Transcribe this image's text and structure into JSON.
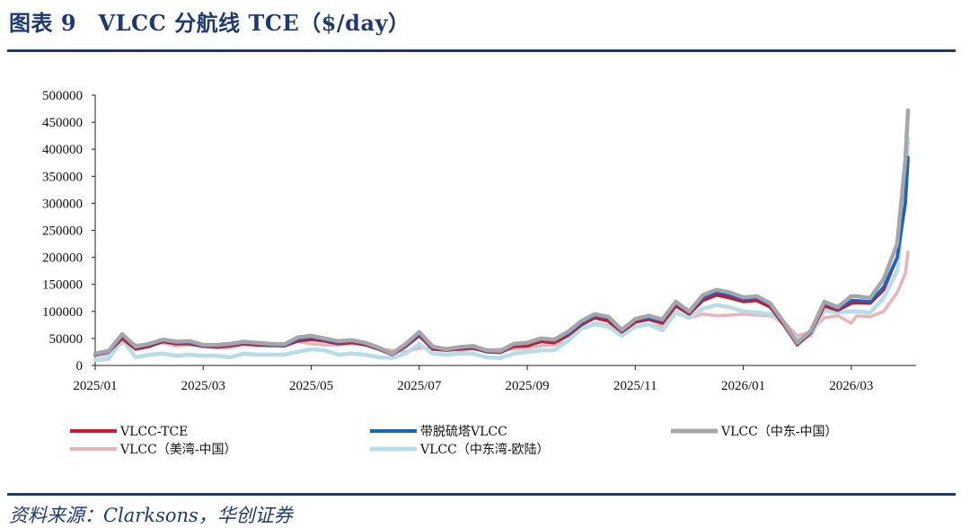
{
  "header": {
    "title": "图表 9　VLCC 分航线 TCE（$/day）"
  },
  "footer": {
    "source": "资料来源：Clarksons，华创证券"
  },
  "chart_data": {
    "type": "line",
    "title": "VLCC 分航线 TCE（$/day）",
    "xlabel": "",
    "ylabel": "",
    "ylim": [
      0,
      500000
    ],
    "y_ticks": [
      0,
      50000,
      100000,
      150000,
      200000,
      250000,
      300000,
      350000,
      400000,
      450000,
      500000
    ],
    "x_ticks": [
      "2025/01",
      "2025/03",
      "2025/05",
      "2025/07",
      "2025/09",
      "2025/11",
      "2026/01",
      "2026/03"
    ],
    "x_tick_months": [
      0,
      2,
      4,
      6,
      8,
      10,
      12,
      14
    ],
    "x_range_months": [
      0,
      14.2
    ],
    "legend_placement": "bottom",
    "x": [
      0,
      0.25,
      0.5,
      0.75,
      1,
      1.25,
      1.5,
      1.75,
      2,
      2.25,
      2.5,
      2.75,
      3,
      3.25,
      3.5,
      3.75,
      4,
      4.25,
      4.5,
      4.75,
      5,
      5.25,
      5.5,
      5.75,
      6,
      6.25,
      6.5,
      6.75,
      7,
      7.25,
      7.5,
      7.75,
      8,
      8.25,
      8.5,
      8.75,
      9,
      9.25,
      9.5,
      9.75,
      10,
      10.25,
      10.5,
      10.75,
      11,
      11.25,
      11.5,
      11.75,
      12,
      12.25,
      12.5,
      12.75,
      13,
      13.25,
      13.5,
      13.75,
      14,
      14.1
    ],
    "series": [
      {
        "name": "VLCC-TCE",
        "color": "#d2152b",
        "width": 3.5,
        "values": [
          20000,
          25000,
          50000,
          30000,
          35000,
          44000,
          40000,
          40000,
          35000,
          34000,
          36000,
          40000,
          38000,
          37000,
          36000,
          45000,
          48000,
          45000,
          40000,
          42000,
          38000,
          30000,
          20000,
          35000,
          55000,
          30000,
          28000,
          30000,
          32000,
          25000,
          24000,
          35000,
          36000,
          44000,
          42000,
          55000,
          75000,
          88000,
          82000,
          62000,
          80000,
          85000,
          78000,
          110000,
          95000,
          120000,
          130000,
          125000,
          118000,
          120000,
          108000,
          75000,
          38000,
          60000,
          110000,
          102000,
          115000,
          116000
        ]
      },
      {
        "name": "带脱硫塔VLCC",
        "color": "#1565c0",
        "width": 3.5,
        "values": [
          20000,
          25000,
          55000,
          33000,
          38000,
          46000,
          42000,
          42000,
          36000,
          36000,
          38000,
          42000,
          40000,
          38000,
          37000,
          48000,
          52000,
          47000,
          42000,
          45000,
          40000,
          31000,
          21000,
          37000,
          58000,
          33000,
          29000,
          32000,
          34000,
          26000,
          25000,
          38000,
          40000,
          48000,
          46000,
          58000,
          78000,
          92000,
          87000,
          64000,
          84000,
          88000,
          82000,
          115000,
          98000,
          125000,
          135000,
          130000,
          122000,
          125000,
          112000,
          78000,
          40000,
          62000,
          115000,
          105000,
          120000,
          120000
        ]
      },
      {
        "name": "VLCC（中东-中国）",
        "color": "#a6a6a6",
        "width": 4.5,
        "values": [
          22000,
          27000,
          58000,
          35000,
          40000,
          48000,
          44000,
          45000,
          38000,
          38000,
          40000,
          44000,
          42000,
          40000,
          39000,
          52000,
          55000,
          50000,
          45000,
          47000,
          42000,
          33000,
          22000,
          40000,
          62000,
          35000,
          30000,
          34000,
          36000,
          28000,
          27000,
          40000,
          42000,
          50000,
          48000,
          62000,
          82000,
          95000,
          90000,
          66000,
          86000,
          92000,
          85000,
          118000,
          100000,
          130000,
          140000,
          135000,
          126000,
          128000,
          115000,
          80000,
          42000,
          64000,
          118000,
          108000,
          128000,
          128000
        ]
      },
      {
        "name": "VLCC（美湾-中国）",
        "color": "#e8b4b8",
        "width": 3.5,
        "values": [
          18000,
          20000,
          42000,
          38000,
          38000,
          42000,
          36000,
          38000,
          37000,
          32000,
          33000,
          38000,
          36000,
          36000,
          40000,
          44000,
          40000,
          38000,
          38000,
          40000,
          40000,
          30000,
          28000,
          25000,
          32000,
          33000,
          32000,
          28000,
          30000,
          28000,
          30000,
          30000,
          32000,
          36000,
          38000,
          45000,
          68000,
          78000,
          75000,
          60000,
          72000,
          76000,
          72000,
          100000,
          88000,
          95000,
          92000,
          93000,
          95000,
          93000,
          92000,
          80000,
          55000,
          62000,
          88000,
          92000,
          78000,
          92000
        ]
      },
      {
        "name": "VLCC（中东湾-欧陆）",
        "color": "#b7dde8",
        "width": 4.5,
        "values": [
          10000,
          12000,
          48000,
          15000,
          20000,
          22000,
          18000,
          20000,
          18000,
          18000,
          15000,
          22000,
          20000,
          20000,
          20000,
          25000,
          30000,
          28000,
          20000,
          22000,
          20000,
          15000,
          14000,
          22000,
          40000,
          22000,
          20000,
          22000,
          22000,
          15000,
          14000,
          22000,
          25000,
          28000,
          28000,
          45000,
          68000,
          76000,
          72000,
          55000,
          72000,
          76000,
          65000,
          98000,
          88000,
          105000,
          112000,
          108000,
          100000,
          98000,
          95000,
          76000,
          48000,
          55000,
          102000,
          98000,
          100000,
          100000
        ]
      }
    ],
    "tail_x": [
      14.1,
      14.35,
      14.6,
      14.85,
      15.0,
      15.05
    ],
    "tail_values": {
      "VLCC-TCE": [
        116000,
        115000,
        140000,
        200000,
        300000,
        380000
      ],
      "带脱硫塔VLCC": [
        120000,
        118000,
        145000,
        200000,
        300000,
        385000
      ],
      "VLCC（中东-中国）": [
        128000,
        125000,
        160000,
        225000,
        380000,
        472000
      ],
      "VLCC（美湾-中国）": [
        92000,
        90000,
        100000,
        135000,
        170000,
        210000
      ],
      "VLCC（中东湾-欧陆）": [
        100000,
        98000,
        125000,
        175000,
        330000,
        420000
      ]
    }
  }
}
